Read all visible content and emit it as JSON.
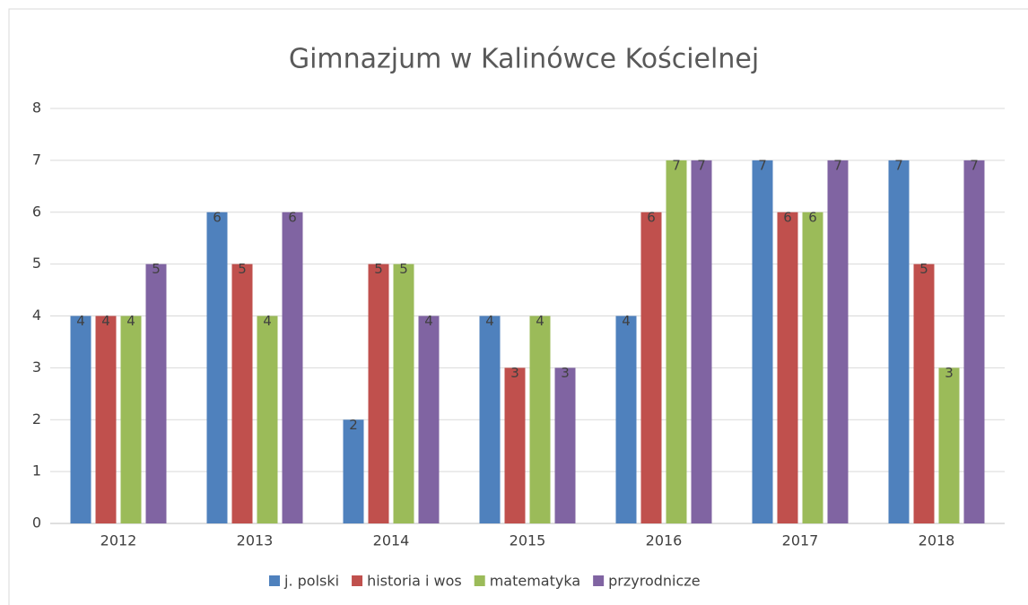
{
  "chart_data": {
    "type": "bar",
    "title": "Gimnazjum w Kalinówce Kościelnej",
    "categories": [
      "2012",
      "2013",
      "2014",
      "2015",
      "2016",
      "2017",
      "2018"
    ],
    "series": [
      {
        "name": "j. polski",
        "color": "#4f81bd",
        "values": [
          4,
          6,
          2,
          4,
          4,
          7,
          7
        ]
      },
      {
        "name": "historia i wos",
        "color": "#c0504d",
        "values": [
          4,
          5,
          5,
          3,
          6,
          6,
          5
        ]
      },
      {
        "name": "matematyka",
        "color": "#9bbb59",
        "values": [
          4,
          4,
          5,
          4,
          7,
          6,
          3
        ]
      },
      {
        "name": "przyrodnicze",
        "color": "#8064a2",
        "values": [
          5,
          6,
          4,
          3,
          7,
          7,
          7
        ]
      }
    ],
    "ylim": [
      0,
      8
    ],
    "yticks": [
      0,
      1,
      2,
      3,
      4,
      5,
      6,
      7,
      8
    ],
    "grid": true,
    "legend": "bottom",
    "data_labels": true
  }
}
